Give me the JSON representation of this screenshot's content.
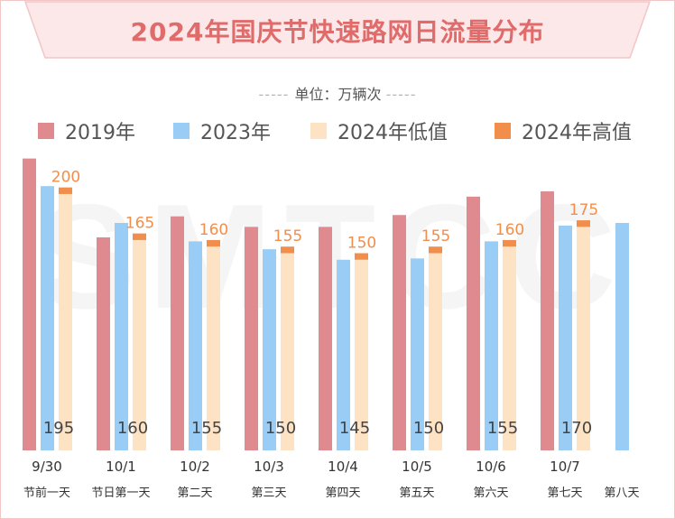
{
  "title": "2024年国庆节快速路网日流量分布",
  "unit_label": "单位：万辆次",
  "watermark": "SMTCC",
  "colors": {
    "y2019": "#de8a8e",
    "y2023": "#99cdf5",
    "y2024low": "#fde2c4",
    "y2024high": "#f28e4b",
    "title": "#e06b6b",
    "banner_bg": "#fce8e8",
    "banner_border": "#f1c6c6"
  },
  "legend": [
    {
      "key": "y2019",
      "label": "2019年"
    },
    {
      "key": "y2023",
      "label": "2023年"
    },
    {
      "key": "y2024low",
      "label": "2024年低值"
    },
    {
      "key": "y2024high",
      "label": "2024年高值"
    }
  ],
  "chart_data": {
    "type": "bar",
    "categories": [
      {
        "date": "9/30",
        "name": "节前一天"
      },
      {
        "date": "10/1",
        "name": "节日第一天"
      },
      {
        "date": "10/2",
        "name": "第二天"
      },
      {
        "date": "10/3",
        "name": "第三天"
      },
      {
        "date": "10/4",
        "name": "第四天"
      },
      {
        "date": "10/5",
        "name": "第五天"
      },
      {
        "date": "10/6",
        "name": "第六天"
      },
      {
        "date": "10/7",
        "name": "第七天"
      },
      {
        "date": "",
        "name": "第八天"
      }
    ],
    "series": [
      {
        "key": "y2019",
        "name": "2019年",
        "values": [
          222,
          162,
          178,
          170,
          170,
          179,
          193,
          197,
          null
        ]
      },
      {
        "key": "y2023",
        "name": "2023年",
        "values": [
          201,
          173,
          159,
          153,
          145,
          146,
          159,
          171,
          173
        ]
      },
      {
        "key": "y2024low",
        "name": "2024年低值",
        "values": [
          195,
          160,
          155,
          150,
          145,
          150,
          155,
          170,
          null
        ]
      },
      {
        "key": "y2024high",
        "name": "2024年高值",
        "values": [
          200,
          165,
          160,
          155,
          150,
          155,
          160,
          175,
          null
        ]
      }
    ],
    "ylim": [
      0,
      230
    ],
    "legend_position": "top"
  }
}
